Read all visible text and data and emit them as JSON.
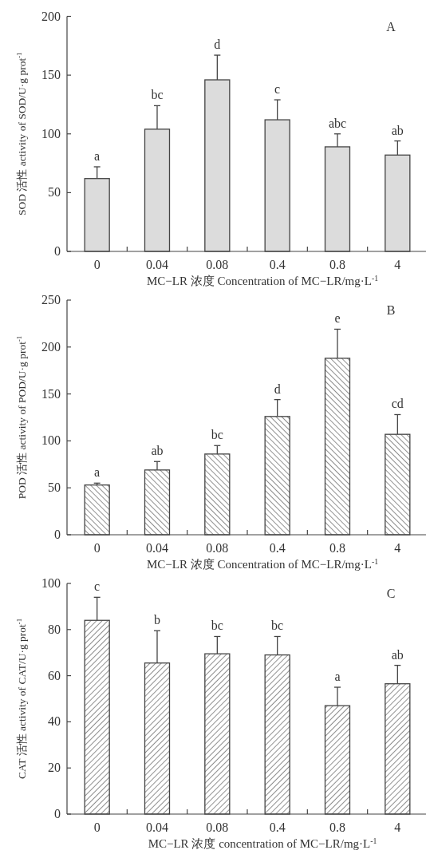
{
  "chart_data": [
    {
      "type": "bar",
      "title": "A",
      "xlabel": "MC−LR 浓度 Concentration of MC−LR/mg·L$^{-1}$",
      "ylabel": "SOD 活性 activity of SOD/U·g prot$^{-1}$",
      "categories": [
        "0",
        "0.04",
        "0.08",
        "0.4",
        "0.8",
        "4"
      ],
      "values": [
        62,
        104,
        146,
        112,
        89,
        82
      ],
      "errors": [
        10,
        20,
        21,
        17,
        11,
        12
      ],
      "color": "#dcdcdc",
      "ylim": [
        0,
        200
      ],
      "yticks": [
        0,
        50,
        100,
        150,
        200
      ],
      "annotations": [
        {
          "text": "a",
          "x": "0",
          "y": 72
        },
        {
          "text": "bc",
          "x": "0.04",
          "y": 124
        },
        {
          "text": "d",
          "x": "0.08",
          "y": 167
        },
        {
          "text": "c",
          "x": "0.4",
          "y": 129
        },
        {
          "text": "abc",
          "x": "0.8",
          "y": 100
        },
        {
          "text": "ab",
          "x": "4",
          "y": 94
        }
      ]
    },
    {
      "type": "bar",
      "title": "B",
      "xlabel": "MC−LR 浓度 Concentration of MC−LR/mg·L$^{-1}$",
      "ylabel": "POD 活性 activity of POD/U·g prot$^{-1}$",
      "categories": [
        "0",
        "0.04",
        "0.08",
        "0.4",
        "0.8",
        "4"
      ],
      "values": [
        53,
        69,
        86,
        126,
        188,
        107
      ],
      "errors": [
        2,
        9,
        9,
        18,
        31,
        21
      ],
      "color": "#444444",
      "ylim": [
        0,
        250
      ],
      "yticks": [
        0,
        50,
        100,
        150,
        200,
        250
      ],
      "annotations": [
        {
          "text": "a",
          "x": "0",
          "y": 55
        },
        {
          "text": "ab",
          "x": "0.04",
          "y": 78
        },
        {
          "text": "bc",
          "x": "0.08",
          "y": 95
        },
        {
          "text": "d",
          "x": "0.4",
          "y": 144
        },
        {
          "text": "e",
          "x": "0.8",
          "y": 219
        },
        {
          "text": "cd",
          "x": "4",
          "y": 128
        }
      ]
    },
    {
      "type": "bar",
      "title": "C",
      "xlabel": "MC−LR 浓度 concentration of MC−LR/mg·L$^{-1}$",
      "ylabel": "CAT 活性 activity of CAT/U·g prot$^{-1}$",
      "categories": [
        "0",
        "0.04",
        "0.08",
        "0.4",
        "0.8",
        "4"
      ],
      "values": [
        84,
        65.5,
        69.5,
        69,
        47,
        56.5
      ],
      "errors": [
        10,
        14,
        7.5,
        8,
        8,
        8
      ],
      "color": "#444444",
      "ylim": [
        0,
        100
      ],
      "yticks": [
        0,
        20,
        40,
        60,
        80,
        100
      ],
      "annotations": [
        {
          "text": "c",
          "x": "0",
          "y": 94
        },
        {
          "text": "b",
          "x": "0.04",
          "y": 79.5
        },
        {
          "text": "bc",
          "x": "0.08",
          "y": 77
        },
        {
          "text": "bc",
          "x": "0.4",
          "y": 77
        },
        {
          "text": "a",
          "x": "0.8",
          "y": 55
        },
        {
          "text": "ab",
          "x": "4",
          "y": 64.5
        }
      ]
    }
  ]
}
